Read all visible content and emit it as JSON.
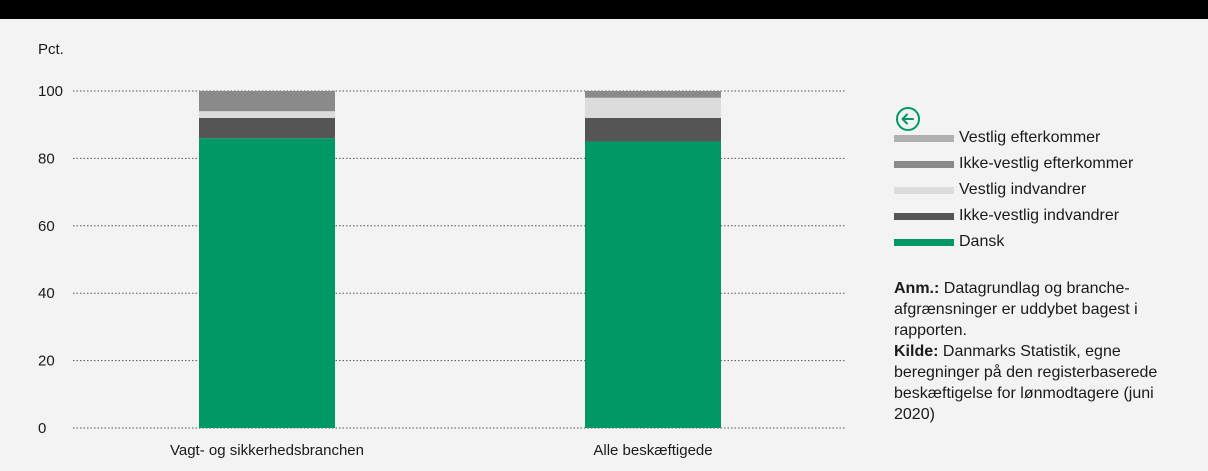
{
  "chart_data": {
    "type": "bar",
    "stacked": true,
    "ylabel": "Pct.",
    "ylim": [
      0,
      100
    ],
    "yticks": [
      0,
      20,
      40,
      60,
      80,
      100
    ],
    "grid": true,
    "categories": [
      "Vagt- og sikkerhedsbranchen",
      "Alle beskæftigede"
    ],
    "series": [
      {
        "name": "Dansk",
        "color": "#009966",
        "values": [
          86,
          85
        ]
      },
      {
        "name": "Ikke-vestlig indvandrer",
        "color": "#555555",
        "values": [
          6,
          7
        ]
      },
      {
        "name": "Vestlig indvandrer",
        "color": "#dcdcdc",
        "values": [
          2,
          6
        ]
      },
      {
        "name": "Ikke-vestlig efterkommer",
        "color": "#8a8a8a",
        "values": [
          6,
          2
        ]
      },
      {
        "name": "Vestlig efterkommer",
        "color": "#b0b0b0",
        "values": [
          0,
          0
        ]
      }
    ],
    "legend_placement": "right"
  },
  "legend": {
    "items": [
      {
        "label": "Vestlig efterkommer",
        "color": "#b0b0b0"
      },
      {
        "label": "Ikke-vestlig efterkommer",
        "color": "#8a8a8a"
      },
      {
        "label": "Vestlig indvandrer",
        "color": "#dcdcdc"
      },
      {
        "label": "Ikke-vestlig indvandrer",
        "color": "#555555"
      },
      {
        "label": "Dansk",
        "color": "#009966"
      }
    ]
  },
  "back_icon": {
    "name": "arrow-left-circle-icon",
    "color": "#009966"
  },
  "note": {
    "anm_label": "Anm.:",
    "anm_text": " Datagrundlag og branche-afgrænsninger er uddybet bagest i rapporten.",
    "kilde_label": "Kilde:",
    "kilde_text": " Danmarks Statistik, egne beregninger på den registerbaserede beskæftigelse for lønmodtagere (juni 2020)"
  }
}
